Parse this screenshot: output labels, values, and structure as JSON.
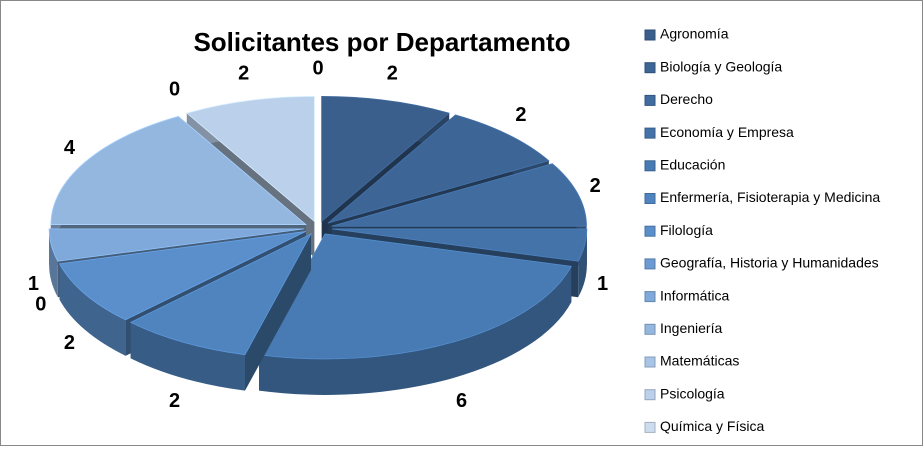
{
  "chart_data": {
    "type": "pie",
    "title": "Solicitantes por Departamento",
    "categories": [
      "Agronomía",
      "Biología y Geología",
      "Derecho",
      "Economía y Empresa",
      "Educación",
      "Enfermería, Fisioterapia y Medicina",
      "Filología",
      "Geografía, Historia y Humanidades",
      "Informática",
      "Ingeniería",
      "Matemáticas",
      "Psicología",
      "Química y Física"
    ],
    "values": [
      2,
      2,
      2,
      1,
      6,
      2,
      2,
      0,
      1,
      4,
      0,
      2,
      0
    ],
    "colors": [
      "#3a5f8c",
      "#3d6596",
      "#416c9f",
      "#4473a9",
      "#487bb3",
      "#4f84bf",
      "#5a8fcb",
      "#6b9bd2",
      "#7ea9da",
      "#94b7e0",
      "#a8c4e6",
      "#bbd0ea",
      "#cddcef"
    ],
    "legend": "right"
  }
}
